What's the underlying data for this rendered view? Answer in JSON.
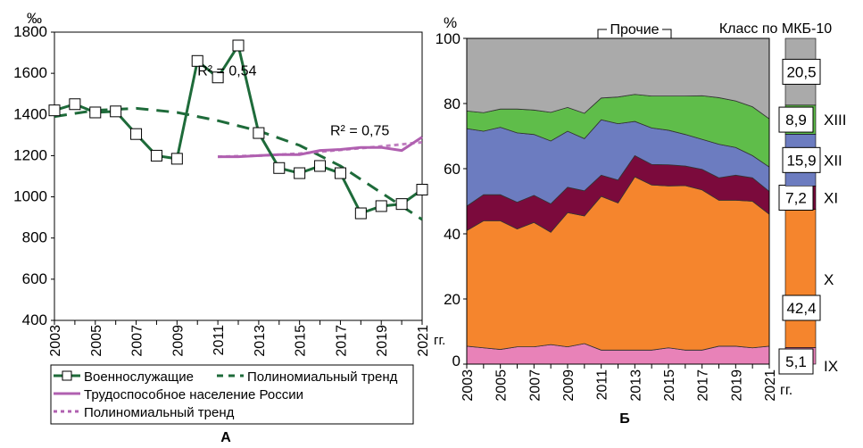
{
  "chart_data": [
    {
      "type": "line",
      "panel_label": "А",
      "ylabel": "‰",
      "ylim": [
        400,
        1800
      ],
      "yticks": [
        400,
        600,
        800,
        1000,
        1200,
        1400,
        1600,
        1800
      ],
      "xlim": [
        2003,
        2021
      ],
      "xticks": [
        "2003",
        "2005",
        "2007",
        "2009",
        "2011",
        "2013",
        "2015",
        "2017",
        "2019",
        "2021"
      ],
      "xunit": "гг.",
      "grid": false,
      "legend_placement": "bottom",
      "series": [
        {
          "name": "Военнослужащие",
          "color": "#1e6b3a",
          "style": "solid-square-markers",
          "x": [
            2003,
            2004,
            2005,
            2006,
            2007,
            2008,
            2009,
            2010,
            2011,
            2012,
            2013,
            2014,
            2015,
            2016,
            2017,
            2018,
            2019,
            2020,
            2021
          ],
          "y": [
            1420,
            1450,
            1410,
            1415,
            1305,
            1200,
            1185,
            1660,
            1580,
            1735,
            1310,
            1140,
            1115,
            1150,
            1115,
            920,
            955,
            965,
            1035
          ]
        },
        {
          "name": "Полиномиальный тренд",
          "color": "#1e6b3a",
          "style": "dashed",
          "x": [
            2003,
            2005,
            2007,
            2009,
            2011,
            2013,
            2015,
            2017,
            2019,
            2021
          ],
          "y": [
            1390,
            1420,
            1430,
            1410,
            1370,
            1320,
            1250,
            1150,
            1020,
            890
          ]
        },
        {
          "name": "Трудоспособное население России",
          "color": "#b060b0",
          "style": "solid",
          "x": [
            2011,
            2012,
            2013,
            2014,
            2015,
            2016,
            2017,
            2018,
            2019,
            2020,
            2021
          ],
          "y": [
            1195,
            1195,
            1200,
            1205,
            1205,
            1225,
            1230,
            1240,
            1240,
            1225,
            1290
          ]
        },
        {
          "name": "Полиномиальный тренд",
          "color": "#b060b0",
          "style": "dotted",
          "x": [
            2011,
            2013,
            2015,
            2017,
            2019,
            2020,
            2021
          ],
          "y": [
            1195,
            1200,
            1210,
            1228,
            1245,
            1255,
            1265
          ]
        }
      ],
      "annotations": [
        {
          "text": "R² = 0,54",
          "x": 2010,
          "y": 1590
        },
        {
          "text": "R² = 0,75",
          "x": 2016.5,
          "y": 1300
        }
      ]
    },
    {
      "type": "area",
      "stacked": true,
      "panel_label": "Б",
      "ylabel": "%",
      "ylim": [
        0,
        100
      ],
      "yticks": [
        0,
        20,
        40,
        60,
        80,
        100
      ],
      "xticks": [
        "2003",
        "2005",
        "2007",
        "2009",
        "2011",
        "2013",
        "2015",
        "2017",
        "2019",
        "2021"
      ],
      "xunit": "гг.",
      "x": [
        2003,
        2004,
        2005,
        2006,
        2007,
        2008,
        2009,
        2010,
        2011,
        2012,
        2013,
        2014,
        2015,
        2016,
        2017,
        2018,
        2019,
        2020,
        2021
      ],
      "legend_title": "Класс по МКБ-10",
      "series": [
        {
          "name": "IX",
          "color": "#e882b8",
          "values": [
            5.5,
            5,
            4.5,
            5.3,
            5.3,
            6,
            5.3,
            6.3,
            4.3,
            4.3,
            4.3,
            4.3,
            5,
            4.3,
            4.3,
            5.5,
            5.5,
            5,
            5.5
          ]
        },
        {
          "name": "X",
          "color": "#f5852d",
          "values": [
            35.5,
            39,
            39.5,
            36.2,
            38.2,
            34.5,
            41.2,
            39.2,
            47.2,
            45.2,
            53.2,
            50.7,
            49.7,
            50.5,
            49.2,
            44.8,
            44.8,
            45,
            40.5
          ]
        },
        {
          "name": "XI",
          "color": "#7b0a3c",
          "values": [
            7.5,
            8,
            8,
            8.2,
            8.3,
            8.7,
            7.8,
            7.7,
            6.5,
            7,
            6.5,
            6.3,
            6.5,
            6,
            6.3,
            6.9,
            7.7,
            7.2,
            7
          ]
        },
        {
          "name": "XII",
          "color": "#6c7cc0",
          "values": [
            23.8,
            19.5,
            20.7,
            21.3,
            18.7,
            19.3,
            17.2,
            16,
            17,
            17.3,
            10.5,
            11.2,
            10.6,
            9.7,
            9.2,
            10.3,
            8.5,
            6.8,
            7.5
          ]
        },
        {
          "name": "XIII",
          "color": "#5fbd4a",
          "values": [
            5.4,
            5.7,
            5.6,
            7.3,
            7.5,
            8.8,
            7.3,
            7.8,
            6.7,
            8.2,
            8.3,
            9.8,
            10.5,
            11.8,
            13.4,
            14.3,
            14.3,
            15,
            14.8
          ]
        },
        {
          "name": "Прочие",
          "color": "#aaaaaa",
          "values": [
            22.3,
            22.8,
            21.7,
            21.7,
            22,
            22.7,
            21.2,
            23,
            18.3,
            18,
            17.2,
            17.7,
            17.7,
            17.7,
            17.6,
            18.2,
            19.2,
            21,
            24.7
          ]
        }
      ],
      "summary_bar": [
        {
          "class": "IX",
          "value": 5.1,
          "label": "5,1"
        },
        {
          "class": "X",
          "value": 42.4,
          "label": "42,4"
        },
        {
          "class": "XI",
          "value": 7.2,
          "label": "7,2"
        },
        {
          "class": "XII",
          "value": 15.9,
          "label": "15,9"
        },
        {
          "class": "XIII",
          "value": 8.9,
          "label": "8,9"
        },
        {
          "class": "Прочие",
          "value": 20.5,
          "label": "20,5"
        }
      ]
    }
  ]
}
